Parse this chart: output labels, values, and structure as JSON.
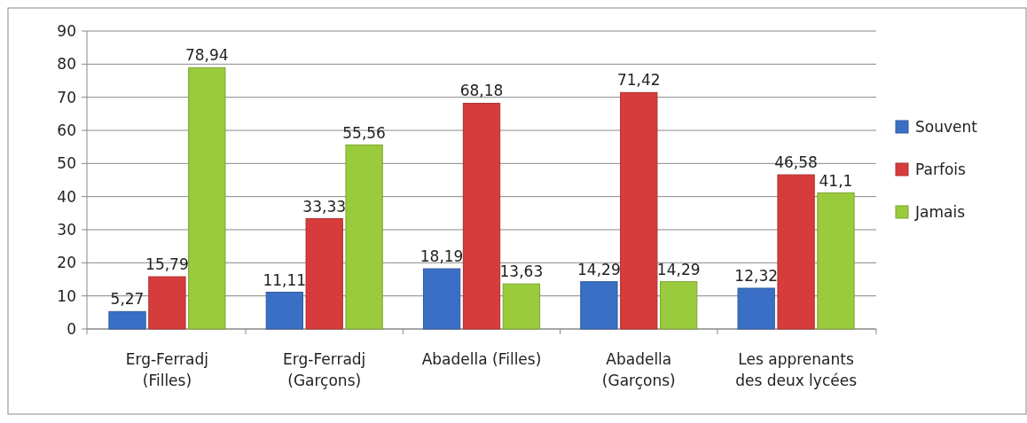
{
  "chart_data": {
    "type": "bar",
    "categories": [
      "Erg-Ferradj (Filles)",
      "Erg-Ferradj (Garçons)",
      "Abadella (Filles)",
      "Abadella (Garçons)",
      "Les apprenants des deux lycées"
    ],
    "series": [
      {
        "name": "Souvent",
        "color": "#3b6fc6",
        "values": [
          5.27,
          11.11,
          18.19,
          14.29,
          12.32
        ],
        "value_labels": [
          "5,27",
          "11,11",
          "18,19",
          "14,29",
          "12,32"
        ]
      },
      {
        "name": "Parfois",
        "color": "#d63c3c",
        "values": [
          15.79,
          33.33,
          68.18,
          71.42,
          46.58
        ],
        "value_labels": [
          "15,79",
          "33,33",
          "68,18",
          "71,42",
          "46,58"
        ]
      },
      {
        "name": "Jamais",
        "color": "#9acb3c",
        "values": [
          78.94,
          55.56,
          13.63,
          14.29,
          41.1
        ],
        "value_labels": [
          "78,94",
          "55,56",
          "13,63",
          "14,29",
          "41,1"
        ]
      }
    ],
    "ylim": [
      0,
      90
    ],
    "yticks": [
      0,
      10,
      20,
      30,
      40,
      50,
      60,
      70,
      80,
      90
    ],
    "grid": "y",
    "legend": "right"
  }
}
